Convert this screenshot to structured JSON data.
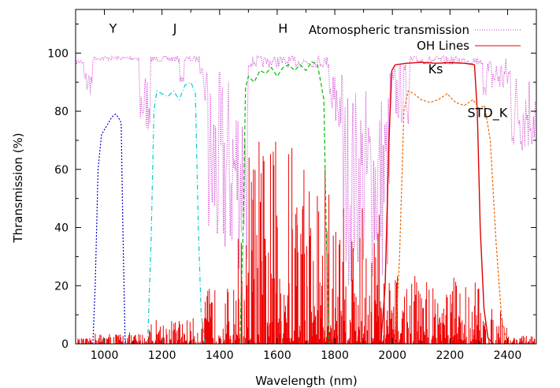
{
  "chart_data": {
    "type": "line",
    "xlabel": "Wavelength (nm)",
    "ylabel": "Thransmission (%)",
    "xlim": [
      900,
      2500
    ],
    "ylim": [
      0,
      115
    ],
    "xticks": [
      1000,
      1200,
      1400,
      1600,
      1800,
      2000,
      2200,
      2400
    ],
    "yticks": [
      0,
      20,
      40,
      60,
      80,
      100
    ],
    "grid": false,
    "legend": [
      "Atomospheric transmission",
      "OH Lines"
    ],
    "band_labels": [
      {
        "text": "Y",
        "x": 1030,
        "y": 107
      },
      {
        "text": "J",
        "x": 1245,
        "y": 107
      },
      {
        "text": "H",
        "x": 1620,
        "y": 107
      },
      {
        "text": "Ks",
        "x": 2150,
        "y": 93
      },
      {
        "text": "STD_K",
        "x": 2330,
        "y": 78
      }
    ],
    "colors": {
      "atmosphere": "#cc33cc",
      "oh": "#ee0000",
      "Y": "#0000cc",
      "J": "#00cccc",
      "H": "#00bb00",
      "Ks": "#dd0000",
      "STD_K": "#ee6600"
    },
    "series": [
      {
        "name": "Y",
        "x": [
          960,
          968,
          978,
          990,
          1002,
          1014,
          1026,
          1038,
          1048,
          1058,
          1064,
          1072
        ],
        "y": [
          0,
          20,
          60,
          72,
          74,
          76,
          78,
          79,
          78,
          76,
          40,
          0
        ]
      },
      {
        "name": "J",
        "x": [
          1150,
          1162,
          1172,
          1182,
          1200,
          1220,
          1240,
          1260,
          1280,
          1300,
          1316,
          1326,
          1336,
          1350
        ],
        "y": [
          0,
          35,
          80,
          87,
          86,
          85,
          87,
          84,
          89,
          90,
          86,
          40,
          10,
          0
        ]
      },
      {
        "name": "H",
        "x": [
          1470,
          1482,
          1490,
          1500,
          1520,
          1540,
          1560,
          1580,
          1600,
          1620,
          1640,
          1660,
          1680,
          1700,
          1720,
          1740,
          1755,
          1762,
          1770,
          1780
        ],
        "y": [
          0,
          40,
          88,
          92,
          90,
          94,
          93,
          95,
          92,
          95,
          96,
          94,
          96,
          94,
          97,
          96,
          88,
          84,
          40,
          0
        ]
      },
      {
        "name": "Ks",
        "x": [
          1960,
          1975,
          1988,
          1998,
          2010,
          2050,
          2100,
          2150,
          2200,
          2250,
          2285,
          2295,
          2305,
          2318,
          2332,
          2350
        ],
        "y": [
          0,
          20,
          70,
          94,
          96,
          96.5,
          96.8,
          96.5,
          96.7,
          96.5,
          96,
          80,
          40,
          12,
          2,
          0
        ]
      },
      {
        "name": "STD_K",
        "x": [
          2010,
          2025,
          2040,
          2055,
          2075,
          2100,
          2130,
          2160,
          2190,
          2220,
          2250,
          2280,
          2300,
          2320,
          2340,
          2360,
          2380,
          2400
        ],
        "y": [
          0,
          30,
          80,
          87,
          86,
          84,
          83,
          84,
          86,
          83,
          82,
          84,
          81,
          82,
          70,
          35,
          8,
          0
        ]
      }
    ]
  }
}
